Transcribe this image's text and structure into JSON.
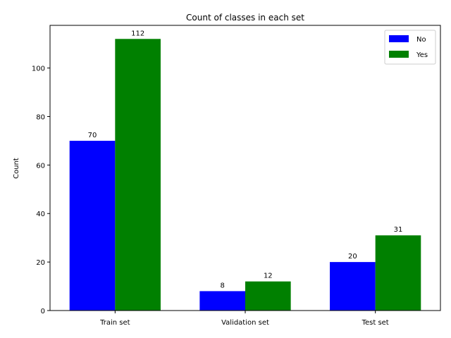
{
  "chart_data": {
    "type": "bar",
    "title": "Count of classes in each set",
    "xlabel": "",
    "ylabel": "Count",
    "categories": [
      "Train set",
      "Validation set",
      "Test set"
    ],
    "series": [
      {
        "name": "No",
        "values": [
          70,
          8,
          20
        ],
        "color": "#0000ff"
      },
      {
        "name": "Yes",
        "values": [
          112,
          12,
          31
        ],
        "color": "#008000"
      }
    ],
    "ylim": [
      0,
      117.6
    ],
    "yticks": [
      0,
      20,
      40,
      60,
      80,
      100
    ],
    "grid": false,
    "legend_position": "top-right"
  }
}
